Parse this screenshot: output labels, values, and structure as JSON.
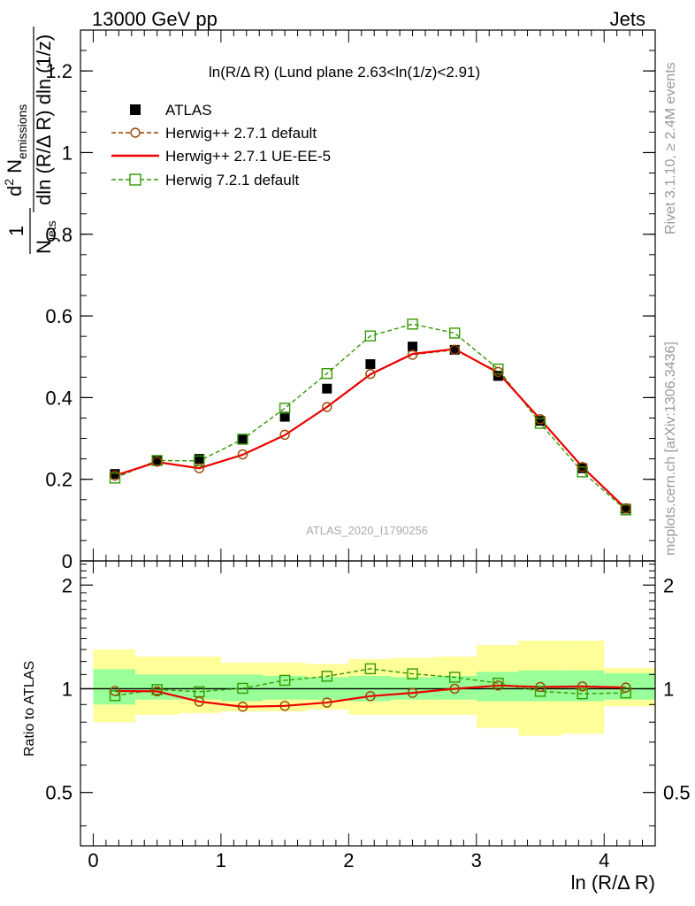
{
  "header": {
    "left": "13000 GeV pp",
    "right": "Jets"
  },
  "side_labels": {
    "rivet": "Rivet 3.1.10, ≥ 2.4M events",
    "mcplots": "mcplots.cern.ch [arXiv:1306.3436]"
  },
  "watermark": "ATLAS_2020_I1790256",
  "plot_title": "ln(R/Δ R) (Lund plane 2.63<ln(1/z)<2.91)",
  "main_ylabel": {
    "one": "1",
    "n_jets": "N",
    "jets_sub": "jets",
    "d2": "d",
    "sup2": "2",
    "n_em": " N",
    "em_sub": "emissions",
    "denom_rest": "dln (R/Δ R) dln (1/z)"
  },
  "ratio_ylabel": "Ratio to ATLAS",
  "xlabel": "ln (R/Δ R)",
  "legend": [
    {
      "label": "ATLAS",
      "style": "data"
    },
    {
      "label": "Herwig++ 2.7.1 default",
      "style": "circle-dashed"
    },
    {
      "label": "Herwig++ 2.7.1 UE-EE-5",
      "style": "red-line"
    },
    {
      "label": "Herwig 7.2.1 default",
      "style": "square-dashed"
    }
  ],
  "chart_data": [
    {
      "type": "scatter",
      "title": "ln(R/Δ R) (Lund plane 2.63<ln(1/z)<2.91)",
      "xlabel": "ln (R/Δ R)",
      "ylabel": "1/N_jets d²N_emissions / dln (R/Δ R) dln (1/z)",
      "xlim": [
        -0.1,
        4.4
      ],
      "ylim": [
        0,
        1.3
      ],
      "yticks": [
        0,
        0.2,
        0.4,
        0.6,
        0.8,
        1,
        1.2
      ],
      "ytick_labels": [
        "0",
        "0.2",
        "0.4",
        "0.6",
        "0.8",
        "1",
        "1.2"
      ],
      "x": [
        0.17,
        0.5,
        0.83,
        1.17,
        1.5,
        1.83,
        2.17,
        2.5,
        2.83,
        3.17,
        3.5,
        3.83,
        4.17
      ],
      "series": [
        {
          "name": "ATLAS",
          "color": "#000000",
          "values": [
            0.213,
            0.247,
            0.25,
            0.297,
            0.353,
            0.422,
            0.482,
            0.525,
            0.517,
            0.453,
            0.343,
            0.227,
            0.128
          ]
        },
        {
          "name": "Herwig++ 2.7.1 default",
          "color": "#994400",
          "values": [
            0.209,
            0.243,
            0.227,
            0.261,
            0.309,
            0.377,
            0.458,
            0.505,
            0.517,
            0.463,
            0.347,
            0.23,
            0.129
          ]
        },
        {
          "name": "Herwig++ 2.7.1 UE-EE-5",
          "color": "#ee0000",
          "values": [
            0.209,
            0.242,
            0.227,
            0.26,
            0.308,
            0.377,
            0.457,
            0.507,
            0.519,
            0.461,
            0.347,
            0.23,
            0.128
          ]
        },
        {
          "name": "Herwig 7.2.1 default",
          "color": "#339900",
          "values": [
            0.203,
            0.246,
            0.245,
            0.298,
            0.374,
            0.459,
            0.551,
            0.58,
            0.558,
            0.47,
            0.337,
            0.218,
            0.125
          ]
        }
      ]
    },
    {
      "type": "line",
      "title": "",
      "xlabel": "ln (R/Δ R)",
      "ylabel": "Ratio to ATLAS",
      "xlim": [
        -0.1,
        4.4
      ],
      "ylim": [
        0.35,
        2.35
      ],
      "yscale": "log",
      "yticks": [
        0.5,
        1,
        2
      ],
      "ytick_labels": [
        "0.5",
        "1",
        "2"
      ],
      "xticks": [
        0,
        1,
        2,
        3,
        4
      ],
      "xtick_labels": [
        "0",
        "1",
        "2",
        "3",
        "4"
      ],
      "x": [
        0.17,
        0.5,
        0.83,
        1.17,
        1.5,
        1.83,
        2.17,
        2.5,
        2.83,
        3.17,
        3.5,
        3.83,
        4.17
      ],
      "bins": [
        [
          0.0,
          0.33
        ],
        [
          0.33,
          0.67
        ],
        [
          0.67,
          1.0
        ],
        [
          1.0,
          1.33
        ],
        [
          1.33,
          1.67
        ],
        [
          1.67,
          2.0
        ],
        [
          2.0,
          2.33
        ],
        [
          2.33,
          2.67
        ],
        [
          2.67,
          3.0
        ],
        [
          3.0,
          3.33
        ],
        [
          3.33,
          3.67
        ],
        [
          3.67,
          4.0
        ],
        [
          4.0,
          4.4
        ]
      ],
      "band_stat": [
        [
          0.9,
          1.14
        ],
        [
          0.93,
          1.1
        ],
        [
          0.93,
          1.1
        ],
        [
          0.92,
          1.1
        ],
        [
          0.93,
          1.09
        ],
        [
          0.93,
          1.08
        ],
        [
          0.92,
          1.09
        ],
        [
          0.93,
          1.08
        ],
        [
          0.93,
          1.09
        ],
        [
          0.92,
          1.12
        ],
        [
          0.92,
          1.13
        ],
        [
          0.92,
          1.13
        ],
        [
          0.93,
          1.11
        ]
      ],
      "band_total": [
        [
          0.8,
          1.3
        ],
        [
          0.84,
          1.24
        ],
        [
          0.85,
          1.24
        ],
        [
          0.86,
          1.19
        ],
        [
          0.86,
          1.19
        ],
        [
          0.87,
          1.18
        ],
        [
          0.84,
          1.22
        ],
        [
          0.84,
          1.23
        ],
        [
          0.84,
          1.24
        ],
        [
          0.77,
          1.34
        ],
        [
          0.73,
          1.38
        ],
        [
          0.74,
          1.38
        ],
        [
          0.89,
          1.15
        ]
      ],
      "series": [
        {
          "name": "Herwig++ 2.7.1 default",
          "color": "#994400",
          "values": [
            0.985,
            0.983,
            0.918,
            0.887,
            0.892,
            0.912,
            0.952,
            0.973,
            1.0,
            1.022,
            1.012,
            1.016,
            1.008
          ]
        },
        {
          "name": "Herwig++ 2.7.1 UE-EE-5",
          "color": "#ee0000",
          "values": [
            0.985,
            0.983,
            0.918,
            0.887,
            0.892,
            0.912,
            0.952,
            0.973,
            1.0,
            1.022,
            1.012,
            1.016,
            1.008
          ]
        },
        {
          "name": "Herwig 7.2.1 default",
          "color": "#339900",
          "values": [
            0.955,
            0.995,
            0.98,
            1.003,
            1.058,
            1.087,
            1.143,
            1.105,
            1.08,
            1.038,
            0.983,
            0.967,
            0.973
          ]
        }
      ]
    }
  ]
}
